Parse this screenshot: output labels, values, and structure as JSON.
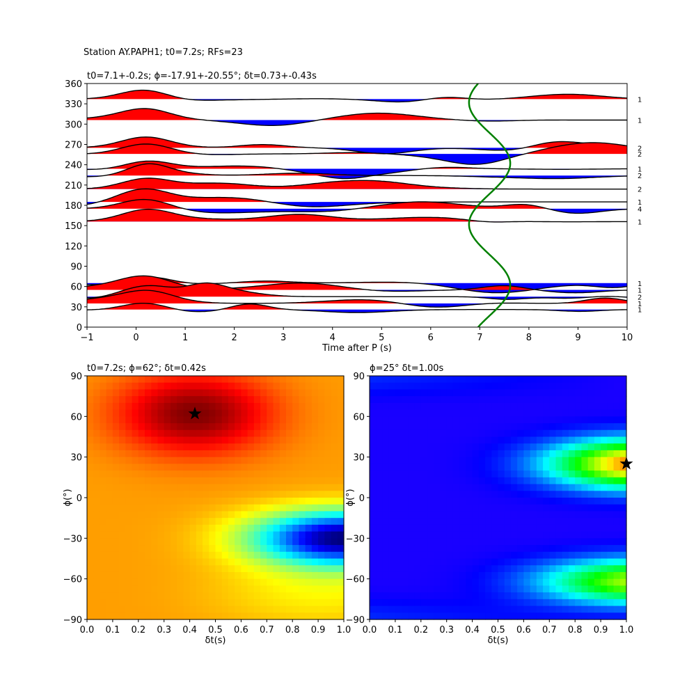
{
  "figure": {
    "suptitle": "Station AY.PAPH1; t0=7.2s; RFs=23",
    "colors": {
      "positive": "#ff0000",
      "negative": "#0000ff",
      "moveout": "#008000",
      "trace": "#000000"
    }
  },
  "chart_data": [
    {
      "type": "line",
      "title": "t0=7.1+-0.2s; ϕ=-17.91+-20.55°; δt=0.73+-0.43s",
      "xlabel": "Time after P (s)",
      "ylabel": "",
      "xlim": [
        -1,
        10
      ],
      "ylim": [
        0,
        360
      ],
      "xticks": [
        "−1",
        "0",
        "1",
        "2",
        "3",
        "4",
        "5",
        "6",
        "7",
        "8",
        "9",
        "10"
      ],
      "yticks": [
        "0",
        "30",
        "60",
        "90",
        "120",
        "150",
        "180",
        "210",
        "240",
        "270",
        "300",
        "330",
        "360"
      ],
      "description": "Receiver function traces stacked by back-azimuth (degrees); positive lobes red, negative lobes blue; green curve is the split moveout prediction around t0.",
      "traces": [
        {
          "baz": 337,
          "count": "1"
        },
        {
          "baz": 306,
          "count": "1"
        },
        {
          "baz": 265,
          "count": "2"
        },
        {
          "baz": 256,
          "count": "2"
        },
        {
          "baz": 234,
          "count": "1"
        },
        {
          "baz": 224,
          "count": "2"
        },
        {
          "baz": 204,
          "count": "2"
        },
        {
          "baz": 185,
          "count": "1"
        },
        {
          "baz": 175,
          "count": "4"
        },
        {
          "baz": 156,
          "count": "1"
        },
        {
          "baz": 65,
          "count": "1"
        },
        {
          "baz": 55,
          "count": "1"
        },
        {
          "baz": 45,
          "count": "2"
        },
        {
          "baz": 35,
          "count": "1"
        },
        {
          "baz": 26,
          "count": "1"
        }
      ],
      "moveout": {
        "t0": 7.2,
        "amplitude_s": 0.42,
        "fast_azimuth_deg": 62
      }
    },
    {
      "type": "heatmap",
      "title": "t0=7.2s; ϕ=62°; δt=0.42s",
      "xlabel": "δt(s)",
      "ylabel": "ϕ(°)",
      "xlim": [
        0,
        1
      ],
      "ylim": [
        -90,
        90
      ],
      "xticks": [
        "0.0",
        "0.1",
        "0.2",
        "0.3",
        "0.4",
        "0.5",
        "0.6",
        "0.7",
        "0.8",
        "0.9",
        "1.0"
      ],
      "yticks": [
        "−90",
        "−60",
        "−30",
        "0",
        "30",
        "60",
        "90"
      ],
      "colormap": "jet",
      "best": {
        "dt": 0.42,
        "phi": 62
      }
    },
    {
      "type": "heatmap",
      "title": "ϕ=25° δt=1.00s",
      "xlabel": "δt(s)",
      "ylabel": "ϕ(°)",
      "xlim": [
        0,
        1
      ],
      "ylim": [
        -90,
        90
      ],
      "xticks": [
        "0.0",
        "0.1",
        "0.2",
        "0.3",
        "0.4",
        "0.5",
        "0.6",
        "0.7",
        "0.8",
        "0.9",
        "1.0"
      ],
      "yticks": [
        "−90",
        "−60",
        "−30",
        "0",
        "30",
        "60",
        "90"
      ],
      "colormap": "gist_rainbow",
      "best": {
        "dt": 1.0,
        "phi": 25
      }
    }
  ]
}
